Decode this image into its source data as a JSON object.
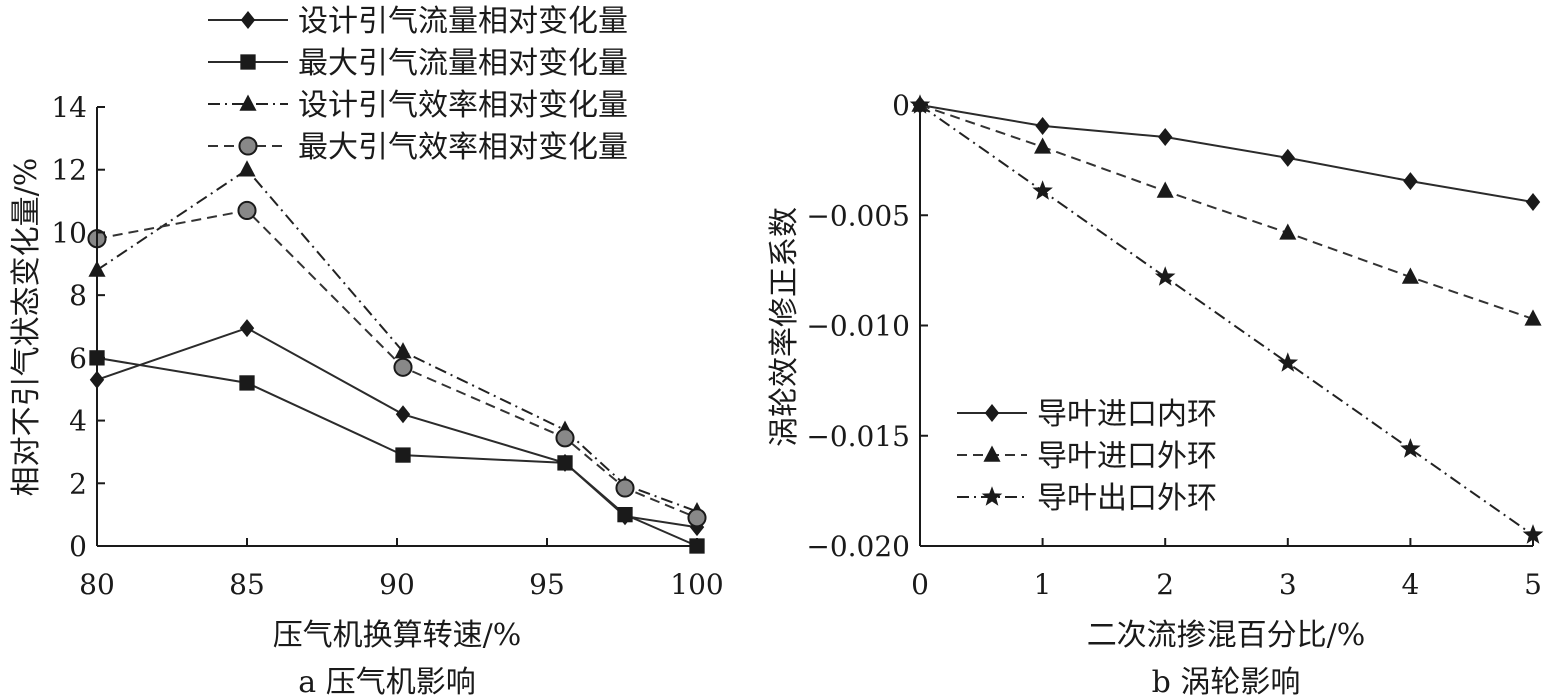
{
  "chart_data": [
    {
      "type": "line",
      "caption": "a 压气机影响",
      "xlabel": "压气机换算转速/%",
      "ylabel": "相对不引气状态变化量/%",
      "xlim": [
        80,
        100
      ],
      "ylim": [
        0,
        14
      ],
      "xticks": [
        "80",
        "85",
        "90",
        "95",
        "100"
      ],
      "yticks": [
        "0",
        "2",
        "4",
        "6",
        "8",
        "10",
        "12",
        "14"
      ],
      "legend_position": "top",
      "series": [
        {
          "name": "设计引气流量相对变化量",
          "marker": "diamond",
          "line": "solid",
          "x": [
            80,
            85,
            90.2,
            95.6,
            97.6,
            100
          ],
          "y": [
            5.3,
            6.95,
            4.2,
            2.65,
            0.95,
            0.6
          ]
        },
        {
          "name": "最大引气流量相对变化量",
          "marker": "square",
          "line": "solid",
          "x": [
            80,
            85,
            90.2,
            95.6,
            97.6,
            100
          ],
          "y": [
            6.0,
            5.2,
            2.9,
            2.65,
            1.0,
            0.0
          ]
        },
        {
          "name": "设计引气效率相对变化量",
          "marker": "triangle",
          "line": "dashdot",
          "x": [
            80,
            85,
            90.2,
            95.6,
            97.6,
            100
          ],
          "y": [
            8.8,
            12.0,
            6.2,
            3.7,
            1.95,
            1.1
          ]
        },
        {
          "name": "最大引气效率相对变化量",
          "marker": "circle",
          "line": "dashed",
          "x": [
            80,
            85,
            90.2,
            95.6,
            97.6,
            100
          ],
          "y": [
            9.8,
            10.7,
            5.7,
            3.45,
            1.85,
            0.9
          ]
        }
      ]
    },
    {
      "type": "line",
      "caption": "b 涡轮影响",
      "xlabel": "二次流掺混百分比/%",
      "ylabel": "涡轮效率修正系数",
      "xlim": [
        0,
        5
      ],
      "ylim": [
        -0.02,
        0
      ],
      "xticks": [
        "0",
        "1",
        "2",
        "3",
        "4",
        "5"
      ],
      "yticks": [
        "0",
        "−0.005",
        "−0.010",
        "−0.015",
        "−0.020"
      ],
      "legend_position": "bottom-left",
      "series": [
        {
          "name": "导叶进口内环",
          "marker": "diamond",
          "line": "solid",
          "x": [
            0,
            1,
            2,
            3,
            4,
            5
          ],
          "y": [
            0,
            -0.00095,
            -0.00145,
            -0.0024,
            -0.00345,
            -0.0044
          ]
        },
        {
          "name": "导叶进口外环",
          "marker": "triangle",
          "line": "dashed",
          "x": [
            0,
            1,
            2,
            3,
            4,
            5
          ],
          "y": [
            0,
            -0.0019,
            -0.0039,
            -0.0058,
            -0.0078,
            -0.0097
          ]
        },
        {
          "name": "导叶出口外环",
          "marker": "star",
          "line": "dashdot",
          "x": [
            0,
            1,
            2,
            3,
            4,
            5
          ],
          "y": [
            0,
            -0.0039,
            -0.0078,
            -0.0117,
            -0.0156,
            -0.0195
          ]
        }
      ]
    }
  ]
}
